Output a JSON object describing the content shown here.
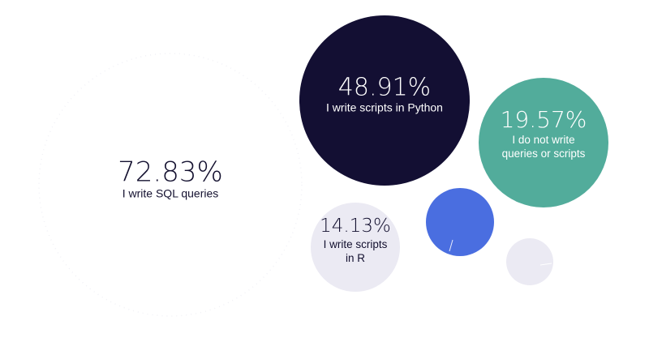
{
  "chart_data": {
    "type": "bubble",
    "title": "",
    "legend": "none",
    "grid": false,
    "bubbles": [
      {
        "key": "sql",
        "value": 72.83,
        "value_label": "72.83%",
        "label_lines": [
          "I write SQL queries"
        ],
        "color": "#ffffff",
        "text_color": "#13102f"
      },
      {
        "key": "python",
        "value": 48.91,
        "value_label": "48.91%",
        "label_lines": [
          "I write scripts in Python"
        ],
        "color": "#130f33",
        "text_color": "#ffffff"
      },
      {
        "key": "none",
        "value": 19.57,
        "value_label": "19.57%",
        "label_lines": [
          "I do not write",
          "queries or scripts"
        ],
        "color": "#52ac9b",
        "text_color": "#ffffff"
      },
      {
        "key": "r",
        "value": 14.13,
        "value_label": "14.13%",
        "label_lines": [
          "I write scripts",
          "in R"
        ],
        "color": "#ebeaf3",
        "text_color": "#13102f"
      },
      {
        "key": "blue",
        "value": null,
        "value_label": "",
        "label_lines": [],
        "color": "#4a6ee0",
        "text_color": "#ffffff"
      },
      {
        "key": "small-gray",
        "value": null,
        "value_label": "",
        "label_lines": [],
        "color": "#ebeaf3",
        "text_color": "#13102f"
      }
    ]
  }
}
